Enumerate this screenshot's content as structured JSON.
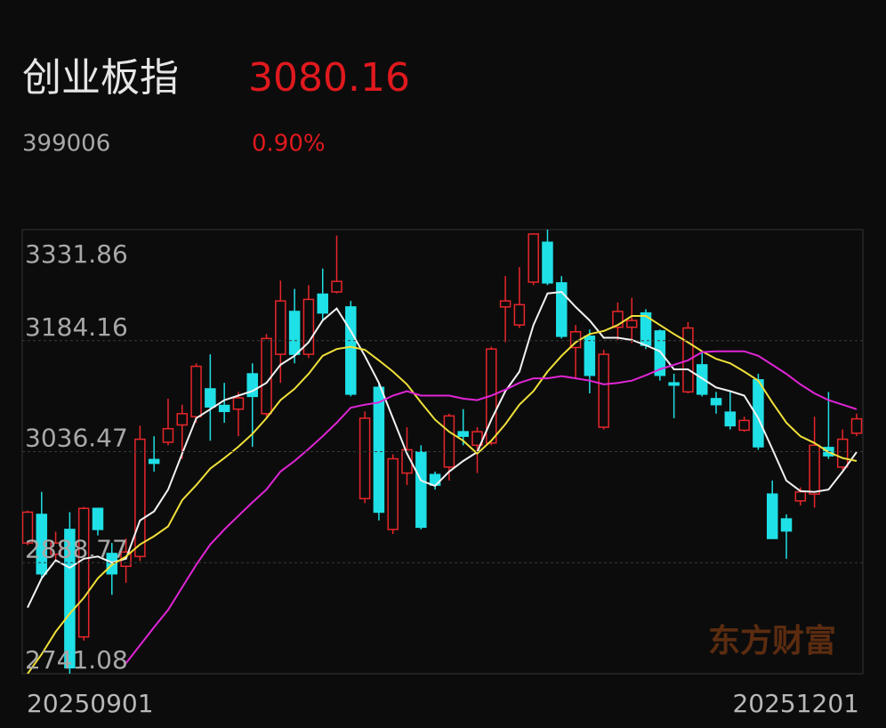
{
  "header": {
    "name": "创业板指",
    "price": "3080.16",
    "code": "399006",
    "change": "0.90%"
  },
  "watermark": "东方财富",
  "chart_data": {
    "type": "candlestick",
    "categories": [
      "20250901",
      null,
      null,
      null,
      null,
      null,
      null,
      null,
      null,
      null,
      null,
      null,
      null,
      null,
      null,
      null,
      null,
      null,
      null,
      null,
      null,
      null,
      null,
      null,
      null,
      null,
      null,
      null,
      null,
      null,
      null,
      null,
      null,
      null,
      null,
      null,
      null,
      null,
      null,
      null,
      null,
      null,
      null,
      null,
      null,
      null,
      null,
      null,
      null,
      null,
      null,
      null,
      null,
      null,
      null,
      null,
      null,
      null,
      null,
      "20251201"
    ],
    "open": [
      2915,
      2953,
      2900,
      2933,
      2790,
      2961,
      2901,
      2884,
      2897,
      3026,
      3049,
      3072,
      3083,
      3120,
      3098,
      3093,
      3140,
      3087,
      3166,
      3223,
      3166,
      3246,
      3249,
      3229,
      2974,
      3122,
      2933,
      3008,
      3036,
      3006,
      3016,
      3063,
      3045,
      3048,
      3229,
      3205,
      3262,
      3315,
      3261,
      3175,
      3190,
      3069,
      3202,
      3202,
      3221,
      3197,
      3128,
      3116,
      3152,
      3107,
      3089,
      3065,
      3132,
      2980,
      2947,
      2971,
      2980,
      3042,
      3016,
      3061
    ],
    "high": [
      2958,
      2983,
      2930,
      2956,
      2963,
      2962,
      2915,
      2921,
      3071,
      3057,
      3107,
      3099,
      3154,
      3166,
      3128,
      3116,
      3154,
      3193,
      3264,
      3253,
      3258,
      3280,
      3324,
      3237,
      3090,
      3128,
      3033,
      3069,
      3045,
      3010,
      3087,
      3093,
      3069,
      3176,
      3270,
      3282,
      3327,
      3332,
      3270,
      3205,
      3199,
      3172,
      3235,
      3241,
      3226,
      3199,
      3140,
      3209,
      3170,
      3116,
      3116,
      3083,
      3140,
      2998,
      2953,
      2989,
      3083,
      3116,
      3066,
      3087
    ],
    "low": [
      2912,
      2868,
      2890,
      2741,
      2785,
      2925,
      2846,
      2862,
      2891,
      3010,
      3045,
      3027,
      3075,
      3051,
      3075,
      3057,
      3043,
      3083,
      3128,
      3154,
      3161,
      3211,
      3247,
      3110,
      2968,
      2945,
      2927,
      2992,
      2933,
      2986,
      2998,
      3045,
      3008,
      3045,
      3182,
      3201,
      3258,
      3258,
      3187,
      3134,
      3114,
      3066,
      3185,
      3181,
      3173,
      3131,
      3081,
      3114,
      3110,
      3087,
      3066,
      3063,
      3039,
      2921,
      2894,
      2965,
      2962,
      3027,
      3012,
      3057
    ],
    "close": [
      2956,
      2874,
      2915,
      2749,
      2961,
      2933,
      2874,
      2903,
      3053,
      3021,
      3067,
      3087,
      3150,
      3096,
      3090,
      3108,
      3110,
      3187,
      3237,
      3166,
      3239,
      3221,
      3263,
      3113,
      3081,
      2956,
      3027,
      3039,
      2936,
      2992,
      3084,
      3057,
      3063,
      3173,
      3237,
      3232,
      3326,
      3261,
      3190,
      3196,
      3138,
      3166,
      3223,
      3211,
      3178,
      3138,
      3125,
      3201,
      3113,
      3099,
      3071,
      3078,
      3043,
      2921,
      2931,
      2983,
      3045,
      3031,
      3053,
      3080.16
    ],
    "up_color": "#e8262b",
    "down_color": "#1fe0e6",
    "moving_averages": [
      {
        "color": "#f2f2f2",
        "values": [
          2829,
          2868,
          2892,
          2882,
          2894,
          2897,
          2889,
          2894,
          2945,
          2957,
          2986,
          3034,
          3081,
          3093,
          3105,
          3111,
          3117,
          3128,
          3152,
          3164,
          3182,
          3211,
          3227,
          3197,
          3164,
          3128,
          3081,
          3034,
          2998,
          2991,
          3010,
          3024,
          3036,
          3079,
          3117,
          3143,
          3205,
          3247,
          3249,
          3229,
          3211,
          3188,
          3188,
          3185,
          3178,
          3170,
          3146,
          3146,
          3134,
          3122,
          3117,
          3111,
          3081,
          3040,
          2998,
          2984,
          2983,
          2986,
          3010,
          3036
        ]
      },
      {
        "color": "#efe03a",
        "values": [
          2741,
          2767,
          2797,
          2821,
          2842,
          2868,
          2886,
          2897,
          2913,
          2924,
          2937,
          2972,
          2992,
          3014,
          3028,
          3043,
          3060,
          3081,
          3105,
          3120,
          3140,
          3164,
          3173,
          3176,
          3172,
          3158,
          3143,
          3126,
          3102,
          3079,
          3063,
          3051,
          3034,
          3051,
          3073,
          3099,
          3117,
          3143,
          3164,
          3182,
          3193,
          3197,
          3205,
          3217,
          3217,
          3205,
          3193,
          3182,
          3170,
          3160,
          3154,
          3143,
          3131,
          3102,
          3075,
          3057,
          3048,
          3036,
          3028,
          3024
        ]
      },
      {
        "color": "#e025d6",
        "values": [
          null,
          null,
          null,
          null,
          null,
          null,
          null,
          2755,
          2779,
          2803,
          2826,
          2856,
          2886,
          2913,
          2933,
          2951,
          2969,
          2986,
          3010,
          3024,
          3040,
          3057,
          3075,
          3095,
          3099,
          3102,
          3111,
          3117,
          3111,
          3111,
          3111,
          3107,
          3105,
          3111,
          3119,
          3128,
          3134,
          3134,
          3137,
          3134,
          3131,
          3126,
          3128,
          3131,
          3138,
          3146,
          3152,
          3158,
          3169,
          3170,
          3170,
          3170,
          3164,
          3152,
          3140,
          3126,
          3114,
          3105,
          3099,
          3093
        ]
      }
    ],
    "ylim": [
      2741.08,
      3331.86
    ],
    "yticks": [
      3331.86,
      3184.16,
      3036.47,
      2888.77,
      2741.08
    ],
    "grid": true
  }
}
